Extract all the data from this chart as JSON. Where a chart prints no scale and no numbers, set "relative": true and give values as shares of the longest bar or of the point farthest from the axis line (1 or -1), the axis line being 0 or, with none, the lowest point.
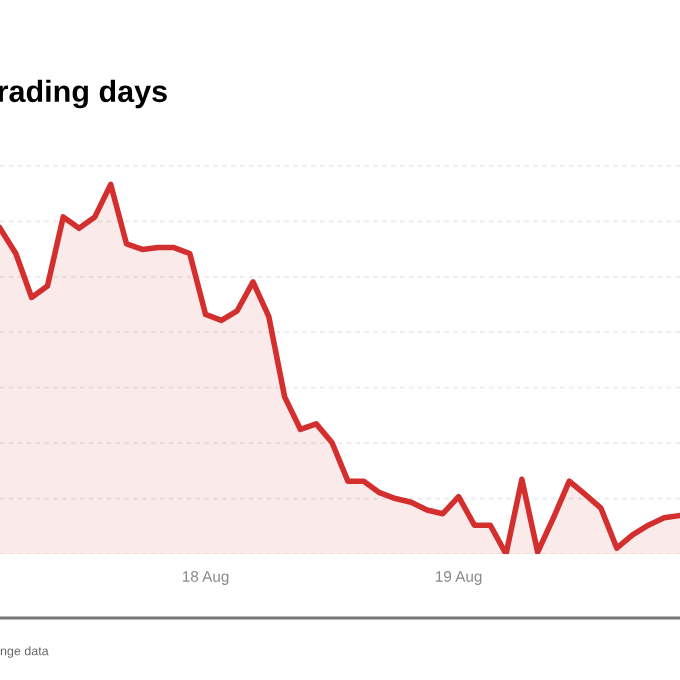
{
  "chart_data": {
    "type": "area",
    "title": "rading days",
    "relative": true,
    "grid": "y",
    "categories": [
      null,
      null,
      null,
      null,
      null,
      null,
      null,
      null,
      null,
      null,
      null,
      null,
      null,
      "18 Aug",
      null,
      null,
      null,
      null,
      null,
      null,
      null,
      null,
      null,
      null,
      null,
      null,
      null,
      null,
      null,
      "19 Aug",
      null,
      null,
      null,
      null,
      null,
      null,
      null,
      null,
      null,
      null,
      null,
      null,
      null,
      null
    ],
    "series": [
      {
        "color": "#d32f2f",
        "values": [
          0.881,
          0.813,
          0.694,
          0.725,
          0.912,
          0.881,
          0.912,
          1,
          0.839,
          0.824,
          0.829,
          0.829,
          0.813,
          0.648,
          0.632,
          0.658,
          0.736,
          0.642,
          0.425,
          0.337,
          0.352,
          0.301,
          0.197,
          0.197,
          0.166,
          0.15,
          0.14,
          0.119,
          0.109,
          0.155,
          0.078,
          0.078,
          0,
          0.202,
          0.005,
          0.098,
          0.197,
          0.161,
          0.124,
          0.016,
          0.052,
          0.078,
          0.098,
          0.104
        ]
      }
    ],
    "annotations": [
      "nge data"
    ]
  }
}
